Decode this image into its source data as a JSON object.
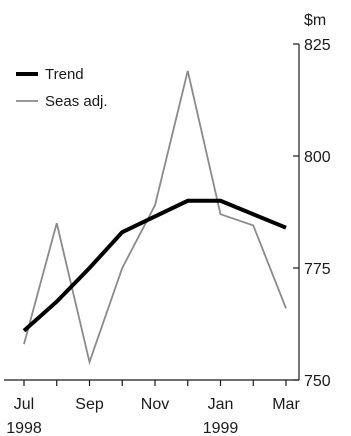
{
  "chart_data": {
    "type": "line",
    "x": [
      "Jul 1998",
      "Aug 1998",
      "Sep 1998",
      "Oct 1998",
      "Nov 1998",
      "Dec 1998",
      "Jan 1999",
      "Feb 1999",
      "Mar 1999"
    ],
    "series": [
      {
        "name": "Trend",
        "values": [
          761,
          767.5,
          775,
          783,
          786.5,
          790,
          790,
          787,
          784
        ],
        "color": "#000000"
      },
      {
        "name": "Seas adj.",
        "values": [
          758,
          785,
          754,
          775,
          789,
          819,
          787,
          784.5,
          766
        ],
        "color": "#8a8a8a"
      }
    ],
    "x_tick_labels": [
      {
        "index": 0,
        "month": "Jul",
        "year": "1998"
      },
      {
        "index": 2,
        "month": "Sep",
        "year": ""
      },
      {
        "index": 4,
        "month": "Nov",
        "year": ""
      },
      {
        "index": 6,
        "month": "Jan",
        "year": "1999"
      },
      {
        "index": 8,
        "month": "Mar",
        "year": ""
      }
    ],
    "y_ticks": [
      750,
      775,
      800,
      825
    ],
    "ylim": [
      750,
      825
    ],
    "y_unit": "$m",
    "y_axis_side": "right",
    "legend_position": "top-left",
    "grid": false
  }
}
